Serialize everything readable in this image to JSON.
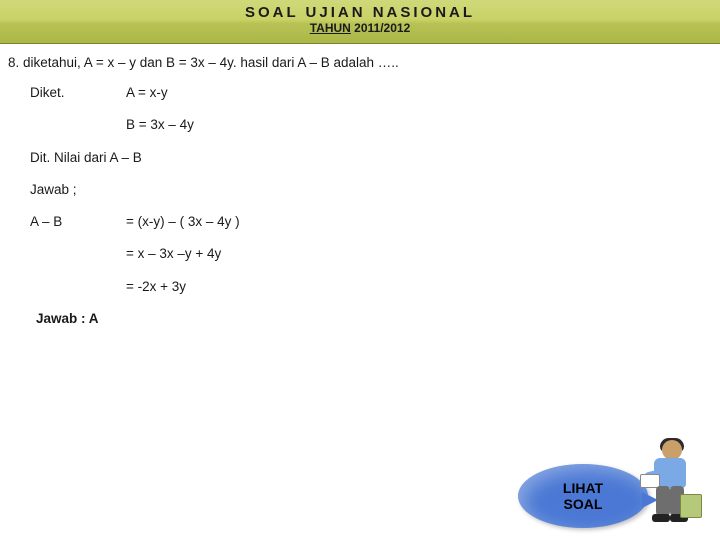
{
  "header": {
    "title": "SOAL  UJIAN  NASIONAL",
    "subtitle_prefix": "TAHUN",
    "subtitle_year": " 2011/2012"
  },
  "question": "8. diketahui, A = x – y dan B = 3x – 4y. hasil dari A – B adalah …..",
  "rows": {
    "diket_label": "Diket.",
    "diket_a": "A = x-y",
    "diket_b": "B = 3x – 4y",
    "dit": "Dit. Nilai dari A – B",
    "jawab": "Jawab ;",
    "ab_label": "A – B",
    "step1": "= (x-y) – ( 3x – 4y )",
    "step2": "= x – 3x –y + 4y",
    "step3": "= -2x + 3y",
    "answer": "Jawab : A"
  },
  "button": {
    "line1": "LIHAT",
    "line2": "SOAL"
  },
  "colors": {
    "header_grad_top": "#d0d97a",
    "header_grad_bottom": "#aab848",
    "bubble": "#4a78d4"
  }
}
